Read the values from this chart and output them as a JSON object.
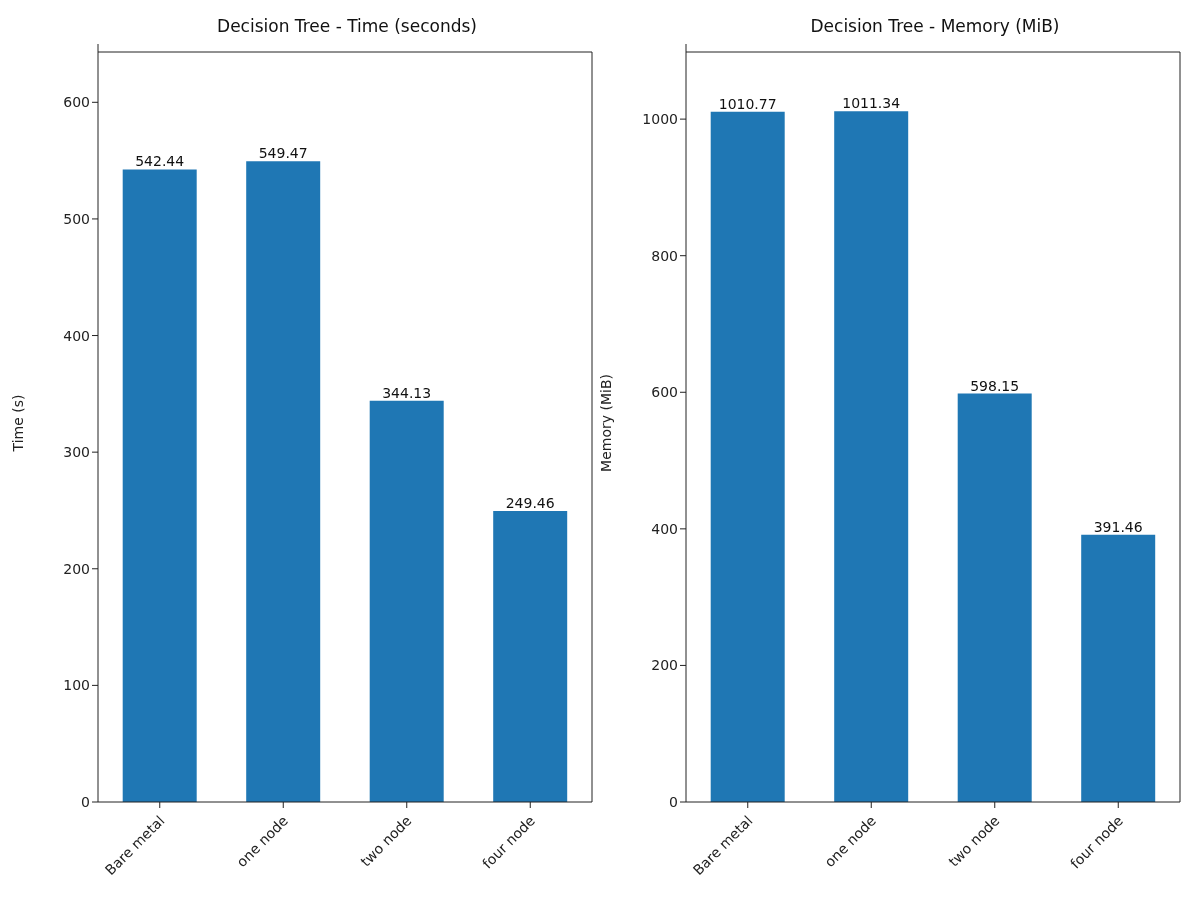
{
  "chart_data": [
    {
      "type": "bar",
      "title": "Decision Tree - Time (seconds)",
      "ylabel": "Time (s)",
      "categories": [
        "Bare metal",
        "one node",
        "two node",
        "four node"
      ],
      "values": [
        542.44,
        549.47,
        344.13,
        249.46
      ],
      "color": "#1f77b4",
      "ylim": [
        0,
        650
      ],
      "yticks": [
        0,
        100,
        200,
        300,
        400,
        500,
        600
      ],
      "data_labels": true,
      "grid": false,
      "legend": false
    },
    {
      "type": "bar",
      "title": "Decision Tree - Memory (MiB)",
      "ylabel": "Memory (MiB)",
      "categories": [
        "Bare metal",
        "one node",
        "two node",
        "four node"
      ],
      "values": [
        1010.77,
        1011.34,
        598.15,
        391.46
      ],
      "color": "#1f77b4",
      "ylim": [
        0,
        1110
      ],
      "yticks": [
        0,
        200,
        400,
        600,
        800,
        1000
      ],
      "data_labels": true,
      "grid": false,
      "legend": false
    }
  ]
}
